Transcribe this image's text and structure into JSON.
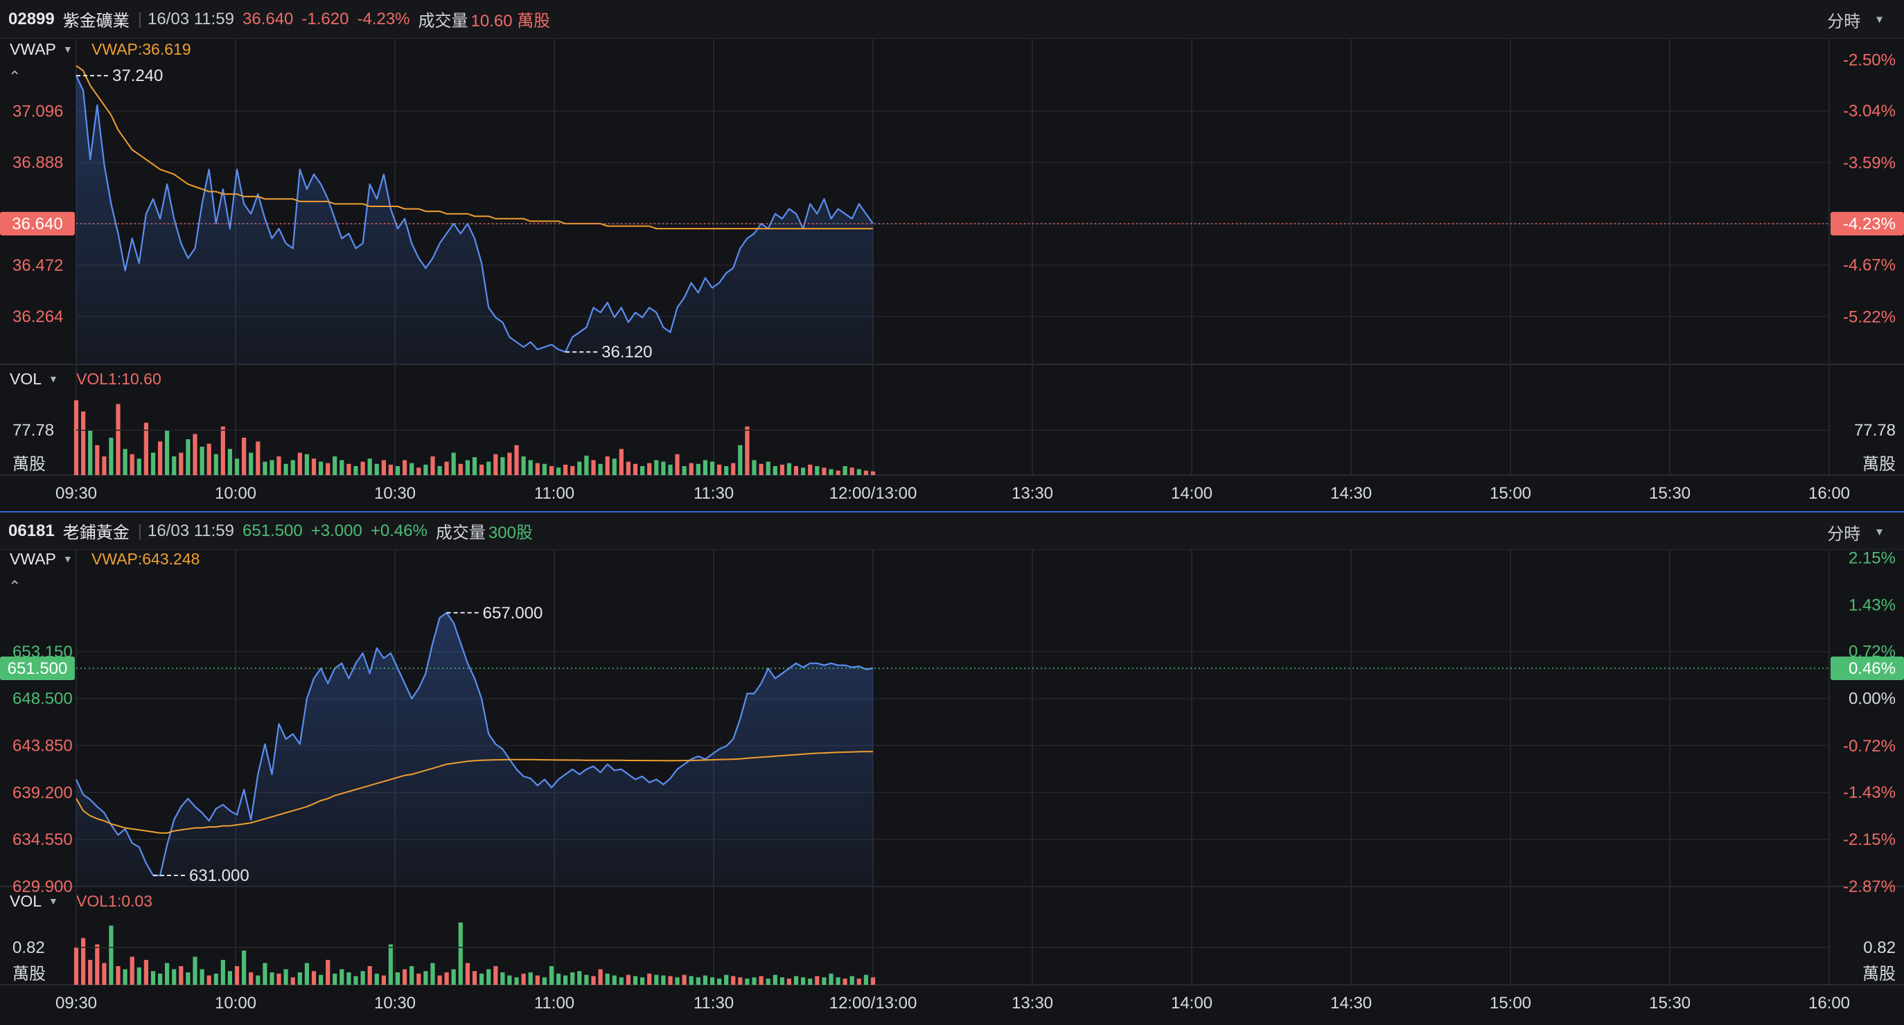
{
  "panels": [
    {
      "code": "02899",
      "name": "紫金礦業",
      "datetime": "16/03 11:59",
      "price": "36.640",
      "change": "-1.620",
      "change_pct": "-4.23%",
      "volume_label": "成交量",
      "volume_value": "10.60 萬股",
      "period": "分時",
      "trend": "down",
      "vwap_label": "VWAP",
      "vwap_value": "VWAP:36.619",
      "vol_label": "VOL",
      "vol_value": "VOL1:10.60",
      "left_ticks": [
        "37.096",
        "36.888",
        "36.640",
        "36.472",
        "36.264"
      ],
      "right_ticks": [
        "-2.50%",
        "-3.04%",
        "-3.59%",
        "-4.23%",
        "-4.67%",
        "-5.22%"
      ],
      "current_left": "36.640",
      "current_right": "-4.23%",
      "high_label": "37.240",
      "low_label": "36.120",
      "vol_tick": "77.78",
      "vol_unit": "萬股",
      "chart_data": {
        "type": "line",
        "ylim": [
          36.07,
          37.35
        ],
        "price": [
          37.24,
          37.18,
          36.9,
          37.12,
          36.88,
          36.72,
          36.6,
          36.45,
          36.58,
          36.48,
          36.68,
          36.74,
          36.66,
          36.8,
          36.66,
          36.56,
          36.5,
          36.54,
          36.72,
          36.86,
          36.64,
          36.78,
          36.62,
          36.86,
          36.72,
          36.68,
          36.76,
          36.66,
          36.58,
          36.62,
          36.56,
          36.54,
          36.86,
          36.78,
          36.84,
          36.8,
          36.74,
          36.66,
          36.58,
          36.6,
          36.54,
          36.56,
          36.8,
          36.74,
          36.84,
          36.7,
          36.62,
          36.66,
          36.56,
          36.5,
          36.46,
          36.5,
          36.56,
          36.6,
          36.64,
          36.6,
          36.64,
          36.58,
          36.48,
          36.3,
          36.26,
          36.24,
          36.18,
          36.16,
          36.14,
          36.16,
          36.13,
          36.14,
          36.15,
          36.13,
          36.12,
          36.18,
          36.2,
          36.22,
          36.3,
          36.28,
          36.32,
          36.26,
          36.3,
          36.24,
          36.28,
          36.26,
          36.3,
          36.28,
          36.22,
          36.2,
          36.3,
          36.34,
          36.4,
          36.36,
          36.42,
          36.38,
          36.4,
          36.44,
          36.46,
          36.54,
          36.58,
          36.6,
          36.64,
          36.62,
          36.68,
          36.66,
          36.7,
          36.68,
          36.62,
          36.72,
          36.68,
          36.74,
          36.66,
          36.7,
          36.68,
          36.66,
          36.72,
          36.68,
          36.64
        ],
        "vwap": [
          37.28,
          37.26,
          37.2,
          37.16,
          37.12,
          37.08,
          37.02,
          36.98,
          36.94,
          36.92,
          36.9,
          36.88,
          36.86,
          36.85,
          36.84,
          36.82,
          36.8,
          36.79,
          36.78,
          36.77,
          36.77,
          36.76,
          36.76,
          36.76,
          36.75,
          36.75,
          36.75,
          36.74,
          36.74,
          36.74,
          36.74,
          36.74,
          36.73,
          36.73,
          36.73,
          36.73,
          36.73,
          36.72,
          36.72,
          36.72,
          36.72,
          36.72,
          36.71,
          36.71,
          36.71,
          36.71,
          36.71,
          36.7,
          36.7,
          36.7,
          36.69,
          36.69,
          36.69,
          36.68,
          36.68,
          36.68,
          36.68,
          36.67,
          36.67,
          36.67,
          36.66,
          36.66,
          36.66,
          36.66,
          36.66,
          36.65,
          36.65,
          36.65,
          36.65,
          36.65,
          36.64,
          36.64,
          36.64,
          36.64,
          36.64,
          36.64,
          36.63,
          36.63,
          36.63,
          36.63,
          36.63,
          36.63,
          36.63,
          36.62,
          36.62,
          36.62,
          36.62,
          36.62,
          36.62,
          36.62,
          36.62,
          36.62,
          36.62,
          36.62,
          36.62,
          36.62,
          36.62,
          36.62,
          36.62,
          36.62,
          36.62,
          36.62,
          36.62,
          36.62,
          36.62,
          36.62,
          36.62,
          36.62,
          36.62,
          36.62,
          36.62,
          36.62,
          36.62,
          36.62,
          36.62
        ],
        "volume": [
          100,
          85,
          60,
          40,
          25,
          50,
          95,
          35,
          28,
          22,
          70,
          30,
          45,
          60,
          25,
          30,
          48,
          55,
          38,
          42,
          28,
          65,
          35,
          22,
          50,
          30,
          45,
          18,
          20,
          25,
          15,
          20,
          30,
          28,
          22,
          18,
          16,
          25,
          20,
          15,
          12,
          18,
          22,
          15,
          20,
          14,
          12,
          20,
          16,
          10,
          14,
          25,
          12,
          18,
          30,
          15,
          20,
          24,
          14,
          18,
          28,
          24,
          30,
          40,
          25,
          20,
          16,
          15,
          12,
          10,
          14,
          12,
          18,
          26,
          20,
          15,
          25,
          22,
          35,
          18,
          15,
          12,
          16,
          20,
          18,
          14,
          28,
          12,
          16,
          15,
          20,
          18,
          14,
          12,
          16,
          40,
          65,
          20,
          15,
          18,
          12,
          14,
          16,
          12,
          10,
          14,
          12,
          10,
          8,
          6,
          12,
          10,
          8,
          6,
          5
        ],
        "vol_colors": "rrgrrgrgrgrgrggrgrgrgrggrgrggrggrgrgrggrgrggrrgrgrgrgrgrggrgrgrrggrgrgrrggrgrgrrrgrgggrgrgggrgrgrgrggrgrgrgrgrgrg",
        "ref": 38.26
      }
    },
    {
      "code": "06181",
      "name": "老鋪黃金",
      "datetime": "16/03 11:59",
      "price": "651.500",
      "change": "+3.000",
      "change_pct": "+0.46%",
      "volume_label": "成交量",
      "volume_value": "300股",
      "period": "分時",
      "trend": "up",
      "vwap_label": "VWAP",
      "vwap_value": "VWAP:643.248",
      "vol_label": "VOL",
      "vol_value": "VOL1:0.03",
      "left_ticks": [
        "653.150",
        "648.500",
        "643.850",
        "639.200",
        "634.550",
        "629.900"
      ],
      "right_ticks": [
        "2.15%",
        "1.43%",
        "0.72%",
        "0.00%",
        "-0.72%",
        "-1.43%",
        "-2.15%",
        "-2.87%"
      ],
      "current_left": "651.500",
      "current_right": "0.46%",
      "high_label": "657.000",
      "low_label": "631.000",
      "vol_tick": "0.82",
      "vol_unit": "萬股",
      "chart_data": {
        "type": "line",
        "ylim": [
          629.9,
          662.4
        ],
        "price": [
          640.5,
          639.0,
          638.5,
          637.8,
          637.2,
          636.0,
          635.0,
          635.6,
          634.2,
          633.8,
          632.2,
          631.0,
          631.0,
          634.0,
          636.5,
          637.8,
          638.6,
          637.8,
          637.2,
          636.4,
          637.6,
          638.0,
          637.4,
          637.0,
          639.5,
          636.5,
          641.0,
          644.0,
          641.0,
          646.0,
          644.5,
          645.0,
          644.0,
          648.5,
          650.5,
          651.5,
          650.0,
          651.5,
          652.0,
          650.5,
          652.0,
          653.0,
          651.0,
          653.5,
          652.5,
          653.0,
          651.5,
          650.0,
          648.5,
          649.5,
          651.0,
          654.0,
          656.5,
          657.0,
          656.0,
          654.0,
          652.0,
          650.5,
          648.5,
          645.0,
          644.0,
          643.5,
          642.5,
          641.5,
          640.8,
          640.6,
          639.9,
          640.5,
          639.7,
          640.5,
          641.0,
          641.5,
          641.0,
          641.5,
          641.8,
          641.2,
          642.0,
          641.4,
          641.5,
          641.0,
          640.5,
          640.8,
          640.2,
          640.5,
          640.0,
          640.6,
          641.5,
          642.0,
          642.5,
          642.8,
          642.5,
          643.0,
          643.5,
          643.8,
          644.5,
          646.5,
          649.0,
          649.0,
          650.0,
          651.5,
          650.5,
          651.0,
          651.5,
          652.0,
          651.6,
          652.0,
          652.0,
          651.8,
          652.0,
          651.8,
          651.8,
          651.6,
          651.7,
          651.4,
          651.5
        ],
        "vwap": [
          638.6,
          637.4,
          636.9,
          636.6,
          636.4,
          636.1,
          635.9,
          635.7,
          635.6,
          635.5,
          635.4,
          635.3,
          635.2,
          635.2,
          635.4,
          635.5,
          635.6,
          635.7,
          635.7,
          635.8,
          635.8,
          635.9,
          635.9,
          636.0,
          636.1,
          636.2,
          636.4,
          636.6,
          636.8,
          637.0,
          637.2,
          637.4,
          637.6,
          637.8,
          638.1,
          638.4,
          638.6,
          638.9,
          639.1,
          639.3,
          639.5,
          639.7,
          639.9,
          640.1,
          640.3,
          640.5,
          640.7,
          640.9,
          641.0,
          641.2,
          641.4,
          641.6,
          641.8,
          642.0,
          642.1,
          642.2,
          642.3,
          642.35,
          642.4,
          642.42,
          642.44,
          642.45,
          642.46,
          642.46,
          642.46,
          642.46,
          642.45,
          642.44,
          642.43,
          642.42,
          642.42,
          642.41,
          642.41,
          642.4,
          642.4,
          642.4,
          642.4,
          642.39,
          642.39,
          642.38,
          642.38,
          642.37,
          642.37,
          642.36,
          642.36,
          642.35,
          642.36,
          642.37,
          642.38,
          642.4,
          642.42,
          642.44,
          642.46,
          642.48,
          642.5,
          642.54,
          642.6,
          642.65,
          642.7,
          642.75,
          642.8,
          642.85,
          642.9,
          642.95,
          643.0,
          643.05,
          643.1,
          643.12,
          643.15,
          643.18,
          643.2,
          643.22,
          643.24,
          643.25,
          643.25
        ],
        "volume": [
          60,
          75,
          40,
          65,
          35,
          95,
          30,
          25,
          45,
          28,
          40,
          22,
          18,
          35,
          25,
          30,
          20,
          45,
          25,
          15,
          18,
          40,
          22,
          30,
          55,
          20,
          15,
          35,
          20,
          18,
          25,
          12,
          20,
          35,
          22,
          16,
          40,
          18,
          25,
          20,
          14,
          22,
          30,
          18,
          15,
          65,
          20,
          25,
          30,
          18,
          22,
          35,
          15,
          20,
          25,
          100,
          35,
          22,
          18,
          25,
          30,
          20,
          15,
          12,
          18,
          20,
          15,
          12,
          30,
          18,
          15,
          20,
          22,
          16,
          14,
          25,
          18,
          15,
          12,
          16,
          14,
          12,
          18,
          16,
          15,
          14,
          12,
          16,
          14,
          12,
          15,
          12,
          10,
          16,
          14,
          12,
          10,
          12,
          14,
          10,
          16,
          12,
          10,
          14,
          12,
          10,
          14,
          12,
          18,
          12,
          10,
          14,
          10,
          16,
          12
        ],
        "vol_colors": "rrrrrgrgrgrggggrgggrgggrgrgggrgrggrgrgggggrgrggrgrggrrggrrggrgggrgrgggggggrrgggrggrggrgrggggggrrggrgggrgggrgggrgrg",
        "ref": 648.5
      }
    }
  ],
  "time_labels": [
    "09:30",
    "10:00",
    "10:30",
    "11:00",
    "11:30",
    "12:00/13:00",
    "13:30",
    "14:00",
    "14:30",
    "15:00",
    "15:30",
    "16:00"
  ],
  "colors": {
    "up": "#4dbd74",
    "down": "#ef6b65",
    "price_line": "#5b8ef0",
    "vwap_line": "#f0a030",
    "grid": "#24262c",
    "bg": "#131418"
  }
}
